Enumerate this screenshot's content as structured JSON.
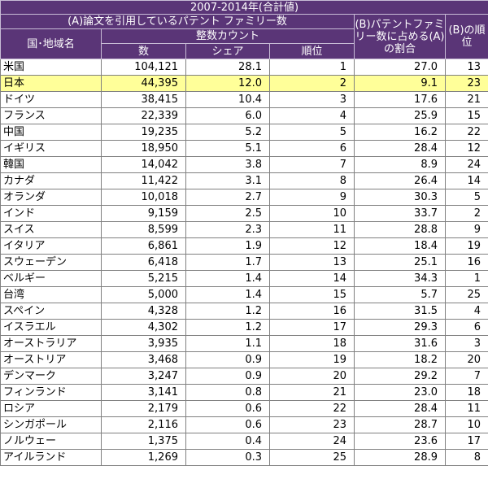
{
  "table": {
    "title": "2007-2014年(合計値)",
    "header": {
      "group_a": "(A)論文を引用しているパテント ファミリー数",
      "group_b": "(B)パテントファミリー数に占める(A)の割合",
      "group_b_rank": "(B)の順位",
      "country": "国･地域名",
      "integer_count": "整数カウント",
      "count": "数",
      "share": "シェア",
      "rank": "順位"
    },
    "rows": [
      {
        "country": "米国",
        "count": "104,121",
        "share": "28.1",
        "rank": "1",
        "ratio": "27.0",
        "ratio_rank": "13"
      },
      {
        "country": "日本",
        "count": "44,395",
        "share": "12.0",
        "rank": "2",
        "ratio": "9.1",
        "ratio_rank": "23"
      },
      {
        "country": "ドイツ",
        "count": "38,415",
        "share": "10.4",
        "rank": "3",
        "ratio": "17.6",
        "ratio_rank": "21"
      },
      {
        "country": "フランス",
        "count": "22,339",
        "share": "6.0",
        "rank": "4",
        "ratio": "25.9",
        "ratio_rank": "15"
      },
      {
        "country": "中国",
        "count": "19,235",
        "share": "5.2",
        "rank": "5",
        "ratio": "16.2",
        "ratio_rank": "22"
      },
      {
        "country": "イギリス",
        "count": "18,950",
        "share": "5.1",
        "rank": "6",
        "ratio": "28.4",
        "ratio_rank": "12"
      },
      {
        "country": "韓国",
        "count": "14,042",
        "share": "3.8",
        "rank": "7",
        "ratio": "8.9",
        "ratio_rank": "24"
      },
      {
        "country": "カナダ",
        "count": "11,422",
        "share": "3.1",
        "rank": "8",
        "ratio": "26.4",
        "ratio_rank": "14"
      },
      {
        "country": "オランダ",
        "count": "10,018",
        "share": "2.7",
        "rank": "9",
        "ratio": "30.3",
        "ratio_rank": "5"
      },
      {
        "country": "インド",
        "count": "9,159",
        "share": "2.5",
        "rank": "10",
        "ratio": "33.7",
        "ratio_rank": "2"
      },
      {
        "country": "スイス",
        "count": "8,599",
        "share": "2.3",
        "rank": "11",
        "ratio": "28.8",
        "ratio_rank": "9"
      },
      {
        "country": "イタリア",
        "count": "6,861",
        "share": "1.9",
        "rank": "12",
        "ratio": "18.4",
        "ratio_rank": "19"
      },
      {
        "country": "スウェーデン",
        "count": "6,418",
        "share": "1.7",
        "rank": "13",
        "ratio": "25.1",
        "ratio_rank": "16"
      },
      {
        "country": "ベルギー",
        "count": "5,215",
        "share": "1.4",
        "rank": "14",
        "ratio": "34.3",
        "ratio_rank": "1"
      },
      {
        "country": "台湾",
        "count": "5,000",
        "share": "1.4",
        "rank": "15",
        "ratio": "5.7",
        "ratio_rank": "25"
      },
      {
        "country": "スペイン",
        "count": "4,328",
        "share": "1.2",
        "rank": "16",
        "ratio": "31.5",
        "ratio_rank": "4"
      },
      {
        "country": "イスラエル",
        "count": "4,302",
        "share": "1.2",
        "rank": "17",
        "ratio": "29.3",
        "ratio_rank": "6"
      },
      {
        "country": "オーストラリア",
        "count": "3,935",
        "share": "1.1",
        "rank": "18",
        "ratio": "31.6",
        "ratio_rank": "3"
      },
      {
        "country": "オーストリア",
        "count": "3,468",
        "share": "0.9",
        "rank": "19",
        "ratio": "18.2",
        "ratio_rank": "20"
      },
      {
        "country": "デンマーク",
        "count": "3,247",
        "share": "0.9",
        "rank": "20",
        "ratio": "29.2",
        "ratio_rank": "7"
      },
      {
        "country": "フィンランド",
        "count": "3,141",
        "share": "0.8",
        "rank": "21",
        "ratio": "23.0",
        "ratio_rank": "18"
      },
      {
        "country": "ロシア",
        "count": "2,179",
        "share": "0.6",
        "rank": "22",
        "ratio": "28.4",
        "ratio_rank": "11"
      },
      {
        "country": "シンガポール",
        "count": "2,116",
        "share": "0.6",
        "rank": "23",
        "ratio": "28.7",
        "ratio_rank": "10"
      },
      {
        "country": "ノルウェー",
        "count": "1,375",
        "share": "0.4",
        "rank": "24",
        "ratio": "23.6",
        "ratio_rank": "17"
      },
      {
        "country": "アイルランド",
        "count": "1,269",
        "share": "0.3",
        "rank": "25",
        "ratio": "28.9",
        "ratio_rank": "8"
      }
    ],
    "highlight_row_country": "日本",
    "colors": {
      "header_bg": "#5a3577",
      "header_text": "#ffffff",
      "highlight_bg": "#ffff99"
    }
  }
}
